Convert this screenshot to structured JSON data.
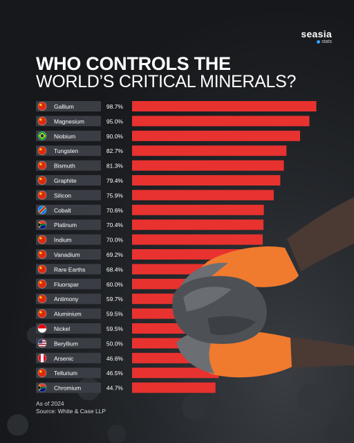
{
  "brand": {
    "name": "seasia",
    "sub": "stats"
  },
  "title": {
    "line1": "WHO CONTROLS THE",
    "line2": "WORLD’S CRITICAL MINERALS?"
  },
  "chart_data": {
    "type": "bar",
    "orientation": "horizontal",
    "title": "WHO CONTROLS THE WORLD’S CRITICAL MINERALS?",
    "categories": [
      "Gallium",
      "Magnesium",
      "Niobium",
      "Tungsten",
      "Bismuth",
      "Graphite",
      "Silicon",
      "Cobalt",
      "Platinum",
      "Indium",
      "Vanadium",
      "Rare Earths",
      "Fluorspar",
      "Antimony",
      "Aluminium",
      "Nickel",
      "Beryllium",
      "Arsenic",
      "Tellurium",
      "Chromium"
    ],
    "value_labels": [
      "98.7%",
      "95.0%",
      "90.0%",
      "82.7%",
      "81.3%",
      "79.4%",
      "75.9%",
      "70.6%",
      "70.4%",
      "70.0%",
      "69.2%",
      "68.4%",
      "60.0%",
      "59.7%",
      "59.5%",
      "59.5%",
      "50.0%",
      "46.6%",
      "46.5%",
      "44.7%"
    ],
    "values": [
      98.7,
      95.0,
      90.0,
      82.7,
      81.3,
      79.4,
      75.9,
      70.6,
      70.4,
      70.0,
      69.2,
      68.4,
      60.0,
      59.7,
      59.5,
      59.5,
      50.0,
      46.6,
      46.5,
      44.7
    ],
    "flags": [
      "china",
      "china",
      "brazil",
      "china",
      "china",
      "china",
      "china",
      "drc",
      "south-africa",
      "china",
      "china",
      "china",
      "china",
      "china",
      "china",
      "indonesia",
      "usa",
      "peru",
      "china",
      "south-africa"
    ],
    "xlim": [
      0,
      100
    ],
    "colors": {
      "bar": "#e8322f",
      "label_bg": "#3a3e44"
    }
  },
  "footer": {
    "asof": "As of 2024",
    "source": "Source: White & Case LLP"
  }
}
